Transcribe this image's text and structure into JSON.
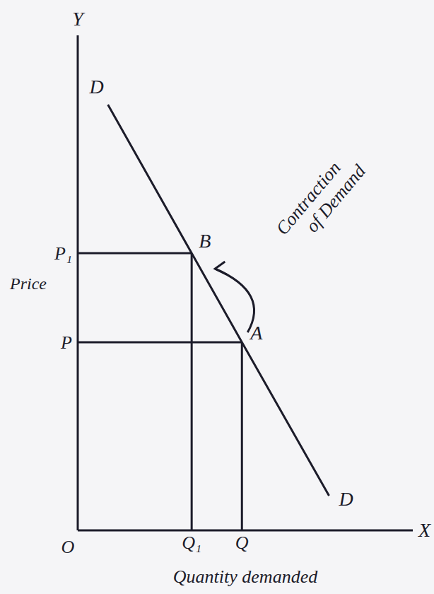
{
  "chart_data": {
    "type": "line",
    "x_label": "Quantity demanded",
    "y_label": "Price",
    "x_axis_letter": "X",
    "y_axis_letter": "Y",
    "origin_label": "O",
    "annotation": "Contraction of Demand",
    "xlim": [
      0,
      10
    ],
    "ylim": [
      0,
      10
    ],
    "xticks": [
      {
        "value": 3.4,
        "label": "Q₁"
      },
      {
        "value": 4.9,
        "label": "Q"
      }
    ],
    "yticks": [
      {
        "value": 3.8,
        "label": "P"
      },
      {
        "value": 5.6,
        "label": "P₁"
      }
    ],
    "grid": false,
    "color": "#1c1c2a",
    "x": [
      0.9,
      3.4,
      4.9,
      7.5
    ],
    "values": [
      8.6,
      5.6,
      3.8,
      0.7
    ],
    "point_labels": [
      "D",
      "B",
      "A",
      "D"
    ]
  }
}
